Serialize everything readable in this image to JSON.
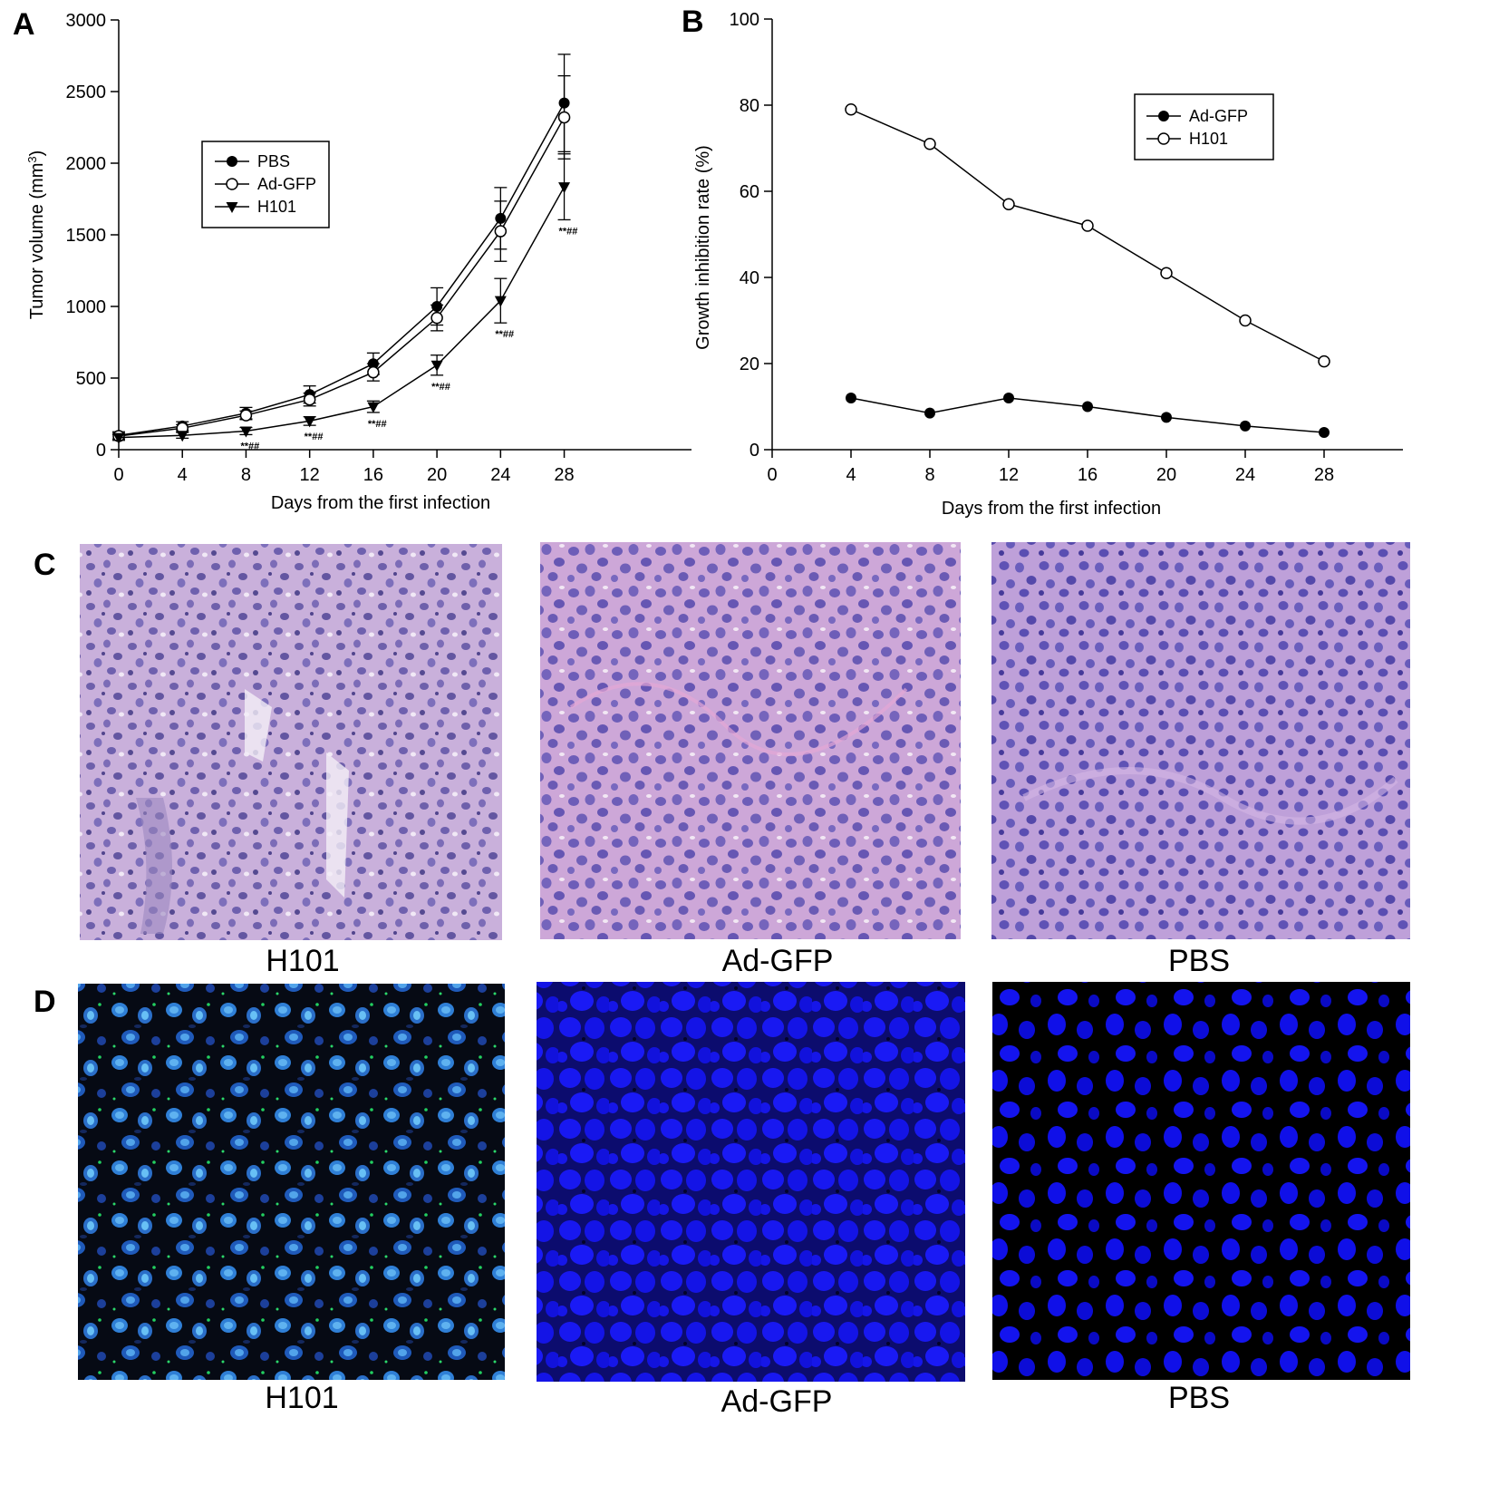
{
  "panels": {
    "A": "A",
    "B": "B",
    "C": "C",
    "D": "D"
  },
  "chart_data": [
    {
      "type": "line",
      "panel": "A",
      "xlabel": "Days from the first infection",
      "ylabel": "Tumor volume (mm",
      "ylabel_sup": "3",
      "ylabel_close": ")",
      "xlim": [
        0,
        36
      ],
      "ylim": [
        0,
        3000
      ],
      "x_ticks": [
        "0",
        "4",
        "8",
        "12",
        "16",
        "20",
        "24",
        "28"
      ],
      "y_ticks": [
        "0",
        "500",
        "1000",
        "1500",
        "2000",
        "2500",
        "3000"
      ],
      "x": [
        0,
        4,
        8,
        12,
        16,
        20,
        24,
        28
      ],
      "legend_position": "upper-left",
      "series": [
        {
          "name": "PBS",
          "marker": "filled-circle",
          "values": [
            100,
            165,
            255,
            385,
            600,
            1000,
            1615,
            2420
          ],
          "errors": [
            25,
            30,
            40,
            60,
            75,
            130,
            215,
            340
          ]
        },
        {
          "name": "Ad-GFP",
          "marker": "open-circle",
          "values": [
            95,
            150,
            240,
            350,
            540,
            920,
            1525,
            2320
          ],
          "errors": [
            20,
            25,
            30,
            45,
            60,
            90,
            210,
            290
          ]
        },
        {
          "name": "H101",
          "marker": "filled-triangle-down",
          "values": [
            85,
            100,
            130,
            200,
            300,
            590,
            1040,
            1835
          ],
          "errors": [
            20,
            20,
            25,
            30,
            40,
            70,
            155,
            230
          ]
        }
      ],
      "annotations": [
        "**##",
        "**##",
        "**##",
        "**##",
        "**##",
        "**##"
      ]
    },
    {
      "type": "line",
      "panel": "B",
      "xlabel": "Days from the first infection",
      "ylabel": "Growth inhibition rate (%)",
      "xlim": [
        0,
        32
      ],
      "ylim": [
        0,
        100
      ],
      "x_ticks": [
        "0",
        "4",
        "8",
        "12",
        "16",
        "20",
        "24",
        "28"
      ],
      "y_ticks": [
        "0",
        "20",
        "40",
        "60",
        "80",
        "100"
      ],
      "x": [
        4,
        8,
        12,
        16,
        20,
        24,
        28
      ],
      "legend_position": "upper-right",
      "series": [
        {
          "name": "Ad-GFP",
          "marker": "filled-circle",
          "values": [
            12,
            8.5,
            12,
            10,
            7.5,
            5.5,
            4
          ]
        },
        {
          "name": "H101",
          "marker": "open-circle",
          "values": [
            79,
            71,
            57,
            52,
            41,
            30,
            20.5
          ]
        }
      ]
    }
  ],
  "micrographs": {
    "he_row": [
      {
        "label": "H101",
        "base": "#bd9fd2"
      },
      {
        "label": "Ad-GFP",
        "base": "#c7a2d8"
      },
      {
        "label": "PBS",
        "base": "#b89cd4"
      }
    ],
    "fluo_row": [
      {
        "label": "H101",
        "base": "#0a0f1e"
      },
      {
        "label": "Ad-GFP",
        "base": "#10108c"
      },
      {
        "label": "PBS",
        "base": "#050505"
      }
    ]
  }
}
